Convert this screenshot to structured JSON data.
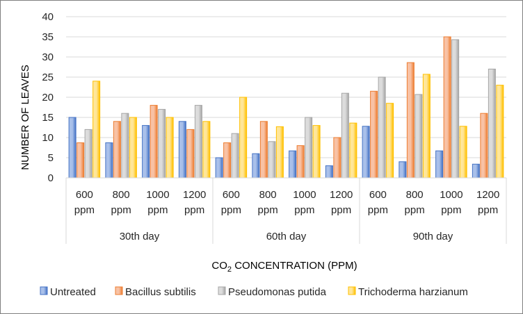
{
  "chart_data": {
    "type": "bar",
    "xlabel_main": "CO",
    "xlabel_sub": "2",
    "xlabel_rest": " CONCENTRATION (PPM)",
    "ylabel": "NUMBER OF LEAVES",
    "ylim": [
      0,
      40
    ],
    "y_ticks": [
      "0",
      "5",
      "10",
      "15",
      "20",
      "25",
      "30",
      "35",
      "40"
    ],
    "grid": true,
    "legend_position": "bottom",
    "groups": [
      {
        "label": "30th day",
        "categories": [
          [
            "600",
            "ppm"
          ],
          [
            "800",
            "ppm"
          ],
          [
            "1000",
            "ppm"
          ],
          [
            "1200",
            "ppm"
          ]
        ]
      },
      {
        "label": "60th day",
        "categories": [
          [
            "600",
            "ppm"
          ],
          [
            "800",
            "ppm"
          ],
          [
            "1000",
            "ppm"
          ],
          [
            "1200",
            "ppm"
          ]
        ]
      },
      {
        "label": "90th day",
        "categories": [
          [
            "600",
            "ppm"
          ],
          [
            "800",
            "ppm"
          ],
          [
            "1000",
            "ppm"
          ],
          [
            "1200",
            "ppm"
          ]
        ]
      }
    ],
    "series": [
      {
        "name": "Untreated",
        "color": "#4472C4",
        "light": "#a9c0ea",
        "values": [
          15,
          8.7,
          13,
          14,
          5,
          6,
          6.7,
          3,
          12.8,
          4,
          6.7,
          3.4
        ]
      },
      {
        "name": "Bacillus subtilis",
        "color": "#ED7D31",
        "light": "#f8c2a5",
        "values": [
          8.7,
          14,
          18,
          12,
          8.7,
          14,
          8,
          10,
          21.5,
          28.6,
          35,
          16
        ]
      },
      {
        "name": "Pseudomonas putida",
        "color": "#A5A5A5",
        "light": "#dcdcdc",
        "values": [
          12,
          16,
          17,
          18,
          11,
          9,
          15,
          21,
          25,
          20.7,
          34.3,
          27
        ]
      },
      {
        "name": "Trichoderma harzianum",
        "color": "#FFC000",
        "light": "#ffe699",
        "values": [
          24,
          15,
          15,
          14,
          20,
          12.7,
          13,
          13.6,
          18.5,
          25.7,
          12.8,
          23
        ]
      }
    ]
  }
}
